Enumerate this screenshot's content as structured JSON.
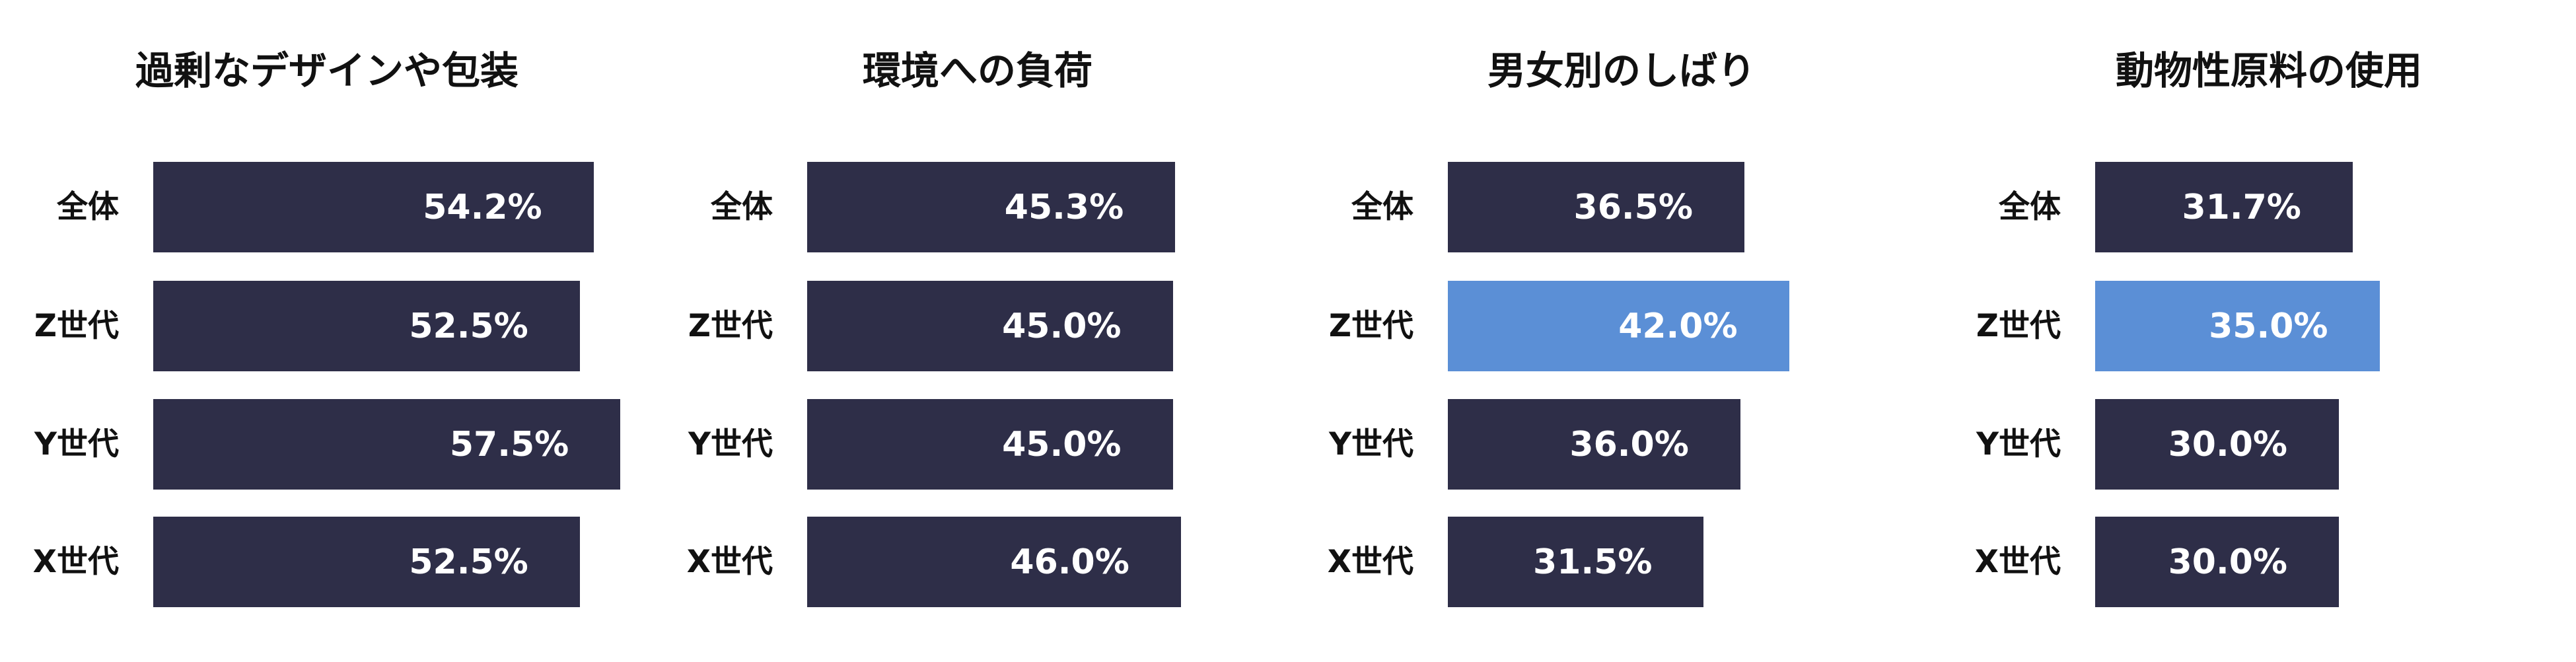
{
  "colors": {
    "default_bar": "#2e2e48",
    "highlight_bar": "#5b8fd6",
    "label_text": "#ffffff"
  },
  "chart_data": [
    {
      "type": "bar",
      "orientation": "horizontal",
      "title": "過剰なデザインや包装",
      "categories": [
        "全体",
        "Z世代",
        "Y世代",
        "X世代"
      ],
      "values": [
        54.2,
        52.5,
        57.5,
        52.5
      ],
      "value_labels": [
        "54.2%",
        "52.5%",
        "57.5%",
        "52.5%"
      ],
      "highlight": [
        false,
        false,
        false,
        false
      ]
    },
    {
      "type": "bar",
      "orientation": "horizontal",
      "title": "環境への負荷",
      "categories": [
        "全体",
        "Z世代",
        "Y世代",
        "X世代"
      ],
      "values": [
        45.3,
        45.0,
        45.0,
        46.0
      ],
      "value_labels": [
        "45.3%",
        "45.0%",
        "45.0%",
        "46.0%"
      ],
      "highlight": [
        false,
        false,
        false,
        false
      ]
    },
    {
      "type": "bar",
      "orientation": "horizontal",
      "title": "男女別のしばり",
      "categories": [
        "全体",
        "Z世代",
        "Y世代",
        "X世代"
      ],
      "values": [
        36.5,
        42.0,
        36.0,
        31.5
      ],
      "value_labels": [
        "36.5%",
        "42.0%",
        "36.0%",
        "31.5%"
      ],
      "highlight": [
        false,
        true,
        false,
        false
      ]
    },
    {
      "type": "bar",
      "orientation": "horizontal",
      "title": "動物性原料の使用",
      "categories": [
        "全体",
        "Z世代",
        "Y世代",
        "X世代"
      ],
      "values": [
        31.7,
        35.0,
        30.0,
        30.0
      ],
      "value_labels": [
        "31.7%",
        "35.0%",
        "30.0%",
        "30.0%"
      ],
      "highlight": [
        false,
        true,
        false,
        false
      ]
    }
  ]
}
